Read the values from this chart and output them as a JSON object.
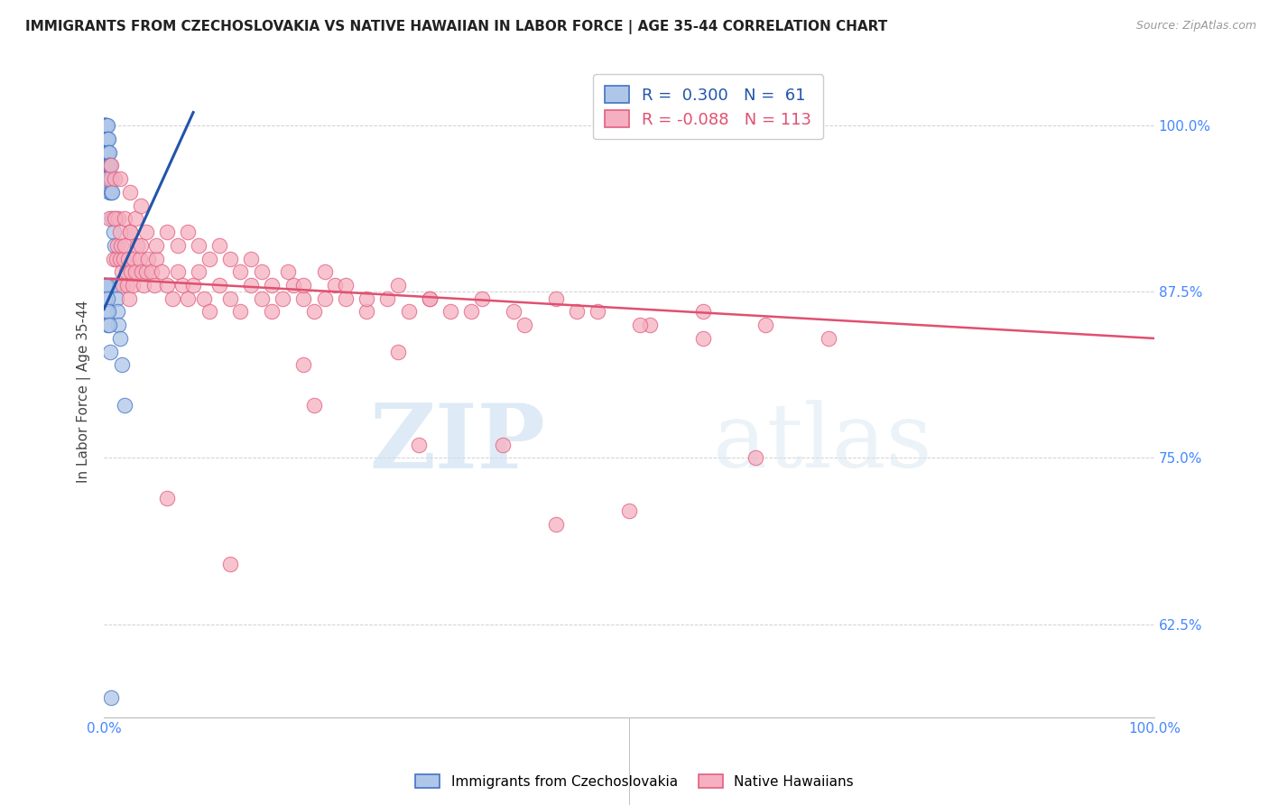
{
  "title": "IMMIGRANTS FROM CZECHOSLOVAKIA VS NATIVE HAWAIIAN IN LABOR FORCE | AGE 35-44 CORRELATION CHART",
  "source": "Source: ZipAtlas.com",
  "ylabel": "In Labor Force | Age 35-44",
  "ytick_labels": [
    "62.5%",
    "75.0%",
    "87.5%",
    "100.0%"
  ],
  "ytick_values": [
    0.625,
    0.75,
    0.875,
    1.0
  ],
  "xlim": [
    0.0,
    1.0
  ],
  "ylim": [
    0.555,
    1.045
  ],
  "legend_blue_r": "0.300",
  "legend_blue_n": "61",
  "legend_pink_r": "-0.088",
  "legend_pink_n": "113",
  "legend_blue_label": "Immigrants from Czechoslovakia",
  "legend_pink_label": "Native Hawaiians",
  "blue_color": "#aec6e8",
  "pink_color": "#f5afc0",
  "blue_edge_color": "#4472c4",
  "pink_edge_color": "#e06080",
  "blue_line_color": "#2255aa",
  "pink_line_color": "#e05070",
  "watermark_zip": "ZIP",
  "watermark_atlas": "atlas",
  "blue_x": [
    0.0005,
    0.0005,
    0.0005,
    0.001,
    0.001,
    0.001,
    0.001,
    0.001,
    0.0015,
    0.0015,
    0.002,
    0.002,
    0.002,
    0.002,
    0.0025,
    0.0025,
    0.003,
    0.003,
    0.003,
    0.003,
    0.003,
    0.004,
    0.004,
    0.004,
    0.004,
    0.005,
    0.005,
    0.005,
    0.005,
    0.005,
    0.006,
    0.006,
    0.006,
    0.007,
    0.007,
    0.007,
    0.008,
    0.008,
    0.008,
    0.009,
    0.009,
    0.01,
    0.01,
    0.011,
    0.012,
    0.013,
    0.014,
    0.015,
    0.017,
    0.02,
    0.0005,
    0.001,
    0.001,
    0.002,
    0.002,
    0.003,
    0.003,
    0.004,
    0.005,
    0.006,
    0.007
  ],
  "blue_y": [
    1.0,
    1.0,
    0.99,
    1.0,
    1.0,
    1.0,
    1.0,
    0.99,
    1.0,
    0.99,
    1.0,
    0.99,
    0.98,
    0.97,
    0.99,
    0.98,
    1.0,
    0.99,
    0.98,
    0.97,
    0.96,
    0.99,
    0.98,
    0.97,
    0.96,
    0.98,
    0.97,
    0.96,
    0.95,
    0.88,
    0.97,
    0.96,
    0.88,
    0.96,
    0.95,
    0.88,
    0.95,
    0.93,
    0.88,
    0.92,
    0.88,
    0.91,
    0.88,
    0.88,
    0.87,
    0.86,
    0.85,
    0.84,
    0.82,
    0.79,
    0.88,
    0.88,
    0.87,
    0.88,
    0.86,
    0.87,
    0.85,
    0.86,
    0.85,
    0.83,
    0.57
  ],
  "blue_line_x": [
    0.0,
    0.085
  ],
  "blue_line_y": [
    0.862,
    1.01
  ],
  "pink_x": [
    0.003,
    0.005,
    0.007,
    0.009,
    0.01,
    0.011,
    0.012,
    0.013,
    0.014,
    0.015,
    0.016,
    0.017,
    0.018,
    0.019,
    0.02,
    0.021,
    0.022,
    0.023,
    0.024,
    0.025,
    0.026,
    0.027,
    0.028,
    0.03,
    0.032,
    0.034,
    0.036,
    0.038,
    0.04,
    0.042,
    0.045,
    0.048,
    0.05,
    0.055,
    0.06,
    0.065,
    0.07,
    0.075,
    0.08,
    0.085,
    0.09,
    0.095,
    0.1,
    0.11,
    0.12,
    0.13,
    0.14,
    0.15,
    0.16,
    0.17,
    0.18,
    0.19,
    0.2,
    0.21,
    0.22,
    0.23,
    0.25,
    0.27,
    0.29,
    0.31,
    0.33,
    0.36,
    0.39,
    0.43,
    0.47,
    0.52,
    0.57,
    0.01,
    0.015,
    0.02,
    0.025,
    0.03,
    0.035,
    0.04,
    0.05,
    0.06,
    0.07,
    0.08,
    0.09,
    0.1,
    0.11,
    0.12,
    0.13,
    0.14,
    0.15,
    0.16,
    0.175,
    0.19,
    0.21,
    0.23,
    0.25,
    0.28,
    0.31,
    0.35,
    0.4,
    0.45,
    0.51,
    0.57,
    0.63,
    0.69,
    0.015,
    0.025,
    0.035,
    0.06,
    0.12,
    0.2,
    0.28,
    0.38,
    0.5,
    0.62,
    0.19,
    0.3,
    0.43
  ],
  "pink_y": [
    0.96,
    0.93,
    0.97,
    0.9,
    0.96,
    0.93,
    0.9,
    0.91,
    0.93,
    0.9,
    0.91,
    0.89,
    0.88,
    0.9,
    0.91,
    0.89,
    0.88,
    0.9,
    0.87,
    0.92,
    0.89,
    0.88,
    0.9,
    0.89,
    0.91,
    0.9,
    0.89,
    0.88,
    0.89,
    0.9,
    0.89,
    0.88,
    0.9,
    0.89,
    0.88,
    0.87,
    0.89,
    0.88,
    0.87,
    0.88,
    0.89,
    0.87,
    0.86,
    0.88,
    0.87,
    0.86,
    0.88,
    0.87,
    0.86,
    0.87,
    0.88,
    0.87,
    0.86,
    0.87,
    0.88,
    0.87,
    0.86,
    0.87,
    0.86,
    0.87,
    0.86,
    0.87,
    0.86,
    0.87,
    0.86,
    0.85,
    0.84,
    0.93,
    0.92,
    0.93,
    0.92,
    0.93,
    0.91,
    0.92,
    0.91,
    0.92,
    0.91,
    0.92,
    0.91,
    0.9,
    0.91,
    0.9,
    0.89,
    0.9,
    0.89,
    0.88,
    0.89,
    0.88,
    0.89,
    0.88,
    0.87,
    0.88,
    0.87,
    0.86,
    0.85,
    0.86,
    0.85,
    0.86,
    0.85,
    0.84,
    0.96,
    0.95,
    0.94,
    0.72,
    0.67,
    0.79,
    0.83,
    0.76,
    0.71,
    0.75,
    0.82,
    0.76,
    0.7
  ],
  "pink_line_x": [
    0.0,
    1.0
  ],
  "pink_line_y": [
    0.885,
    0.84
  ]
}
